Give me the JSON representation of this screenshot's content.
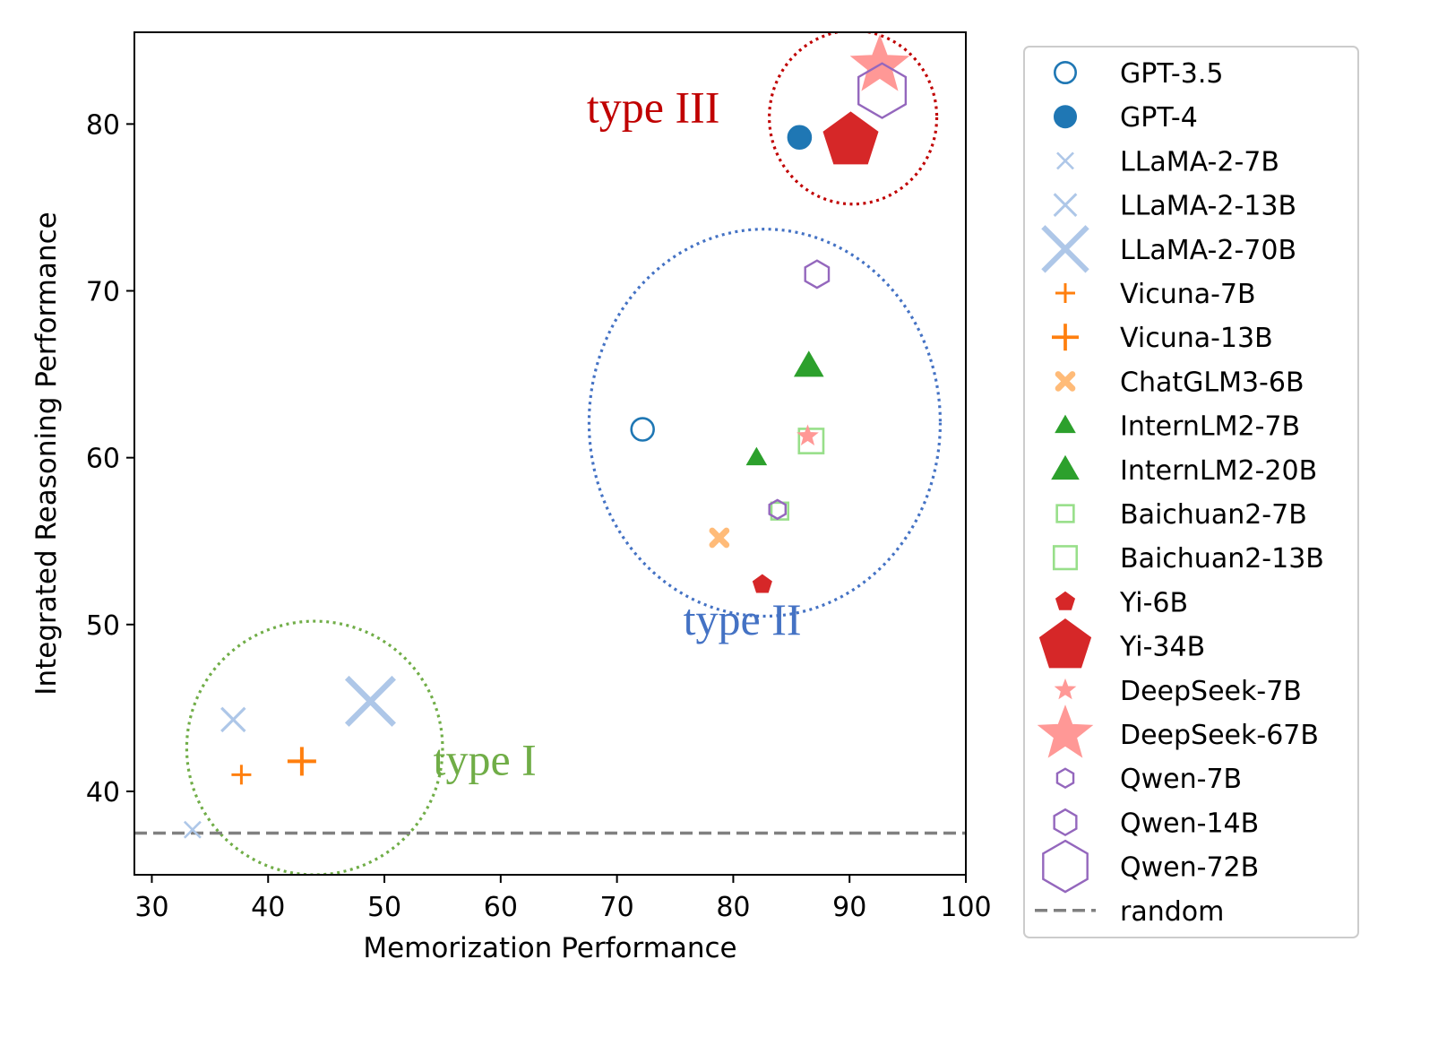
{
  "chart_data": {
    "type": "scatter",
    "xlabel": "Memorization Performance",
    "ylabel": "Integrated Reasoning Performance",
    "xlim": [
      28.5,
      100
    ],
    "ylim": [
      35,
      85.5
    ],
    "xticks": [
      30,
      40,
      50,
      60,
      70,
      80,
      90,
      100
    ],
    "yticks": [
      40,
      50,
      60,
      70,
      80
    ],
    "grid": false,
    "legend_position": "outside-right",
    "series": [
      {
        "name": "GPT-3.5",
        "x": 72.2,
        "y": 61.7,
        "marker": "circle",
        "size": "medium",
        "color": "#1f77b4",
        "filled": false
      },
      {
        "name": "GPT-4",
        "x": 85.7,
        "y": 79.2,
        "marker": "circle",
        "size": "medium",
        "color": "#1f77b4",
        "filled": true
      },
      {
        "name": "LLaMA-2-7B",
        "x": 33.5,
        "y": 37.7,
        "marker": "x",
        "size": "small",
        "color": "#aec7e8",
        "filled": false
      },
      {
        "name": "LLaMA-2-13B",
        "x": 37.0,
        "y": 44.3,
        "marker": "x",
        "size": "medium",
        "color": "#aec7e8",
        "filled": false
      },
      {
        "name": "LLaMA-2-70B",
        "x": 48.8,
        "y": 45.4,
        "marker": "x",
        "size": "large",
        "color": "#aec7e8",
        "filled": false
      },
      {
        "name": "Vicuna-7B",
        "x": 37.7,
        "y": 41.0,
        "marker": "plus",
        "size": "small",
        "color": "#ff7f0e",
        "filled": false
      },
      {
        "name": "Vicuna-13B",
        "x": 42.9,
        "y": 41.8,
        "marker": "plus",
        "size": "medium",
        "color": "#ff7f0e",
        "filled": false
      },
      {
        "name": "ChatGLM3-6B",
        "x": 78.8,
        "y": 55.2,
        "marker": "filled-x",
        "size": "small",
        "color": "#ffbb78",
        "filled": true
      },
      {
        "name": "InternLM2-7B",
        "x": 82.0,
        "y": 60.0,
        "marker": "triangle",
        "size": "small",
        "color": "#2ca02c",
        "filled": true
      },
      {
        "name": "InternLM2-20B",
        "x": 86.5,
        "y": 65.5,
        "marker": "triangle",
        "size": "medium",
        "color": "#2ca02c",
        "filled": true
      },
      {
        "name": "Baichuan2-7B",
        "x": 84.0,
        "y": 56.8,
        "marker": "square",
        "size": "small",
        "color": "#98df8a",
        "filled": false
      },
      {
        "name": "Baichuan2-13B",
        "x": 86.7,
        "y": 61.0,
        "marker": "square",
        "size": "medium",
        "color": "#98df8a",
        "filled": false
      },
      {
        "name": "Yi-6B",
        "x": 82.5,
        "y": 52.4,
        "marker": "pentagon",
        "size": "small",
        "color": "#d62728",
        "filled": true
      },
      {
        "name": "Yi-34B",
        "x": 90.1,
        "y": 79.0,
        "marker": "pentagon",
        "size": "large",
        "color": "#d62728",
        "filled": true
      },
      {
        "name": "DeepSeek-7B",
        "x": 86.4,
        "y": 61.3,
        "marker": "star",
        "size": "small",
        "color": "#ff9896",
        "filled": true
      },
      {
        "name": "DeepSeek-67B",
        "x": 92.6,
        "y": 83.5,
        "marker": "star",
        "size": "large",
        "color": "#ff9896",
        "filled": true
      },
      {
        "name": "Qwen-7B",
        "x": 83.8,
        "y": 56.9,
        "marker": "hexagon",
        "size": "small",
        "color": "#9467bd",
        "filled": false
      },
      {
        "name": "Qwen-14B",
        "x": 87.2,
        "y": 71.0,
        "marker": "hexagon",
        "size": "medium",
        "color": "#9467bd",
        "filled": false
      },
      {
        "name": "Qwen-72B",
        "x": 92.8,
        "y": 82.0,
        "marker": "hexagon",
        "size": "large",
        "color": "#9467bd",
        "filled": false
      }
    ],
    "reference_line": {
      "name": "random",
      "y": 37.5,
      "style": "dashed",
      "color": "#808080"
    },
    "annotations": [
      {
        "text": "type I",
        "color": "#70ad47",
        "center": [
          44.0,
          42.6
        ],
        "radius": [
          11.0,
          7.6
        ],
        "label_at": [
          54.2,
          41.0
        ]
      },
      {
        "text": "type II",
        "color": "#4472c4",
        "center": [
          82.7,
          62.1
        ],
        "radius": [
          15.1,
          11.6
        ],
        "label_at": [
          75.7,
          49.4
        ]
      },
      {
        "text": "type III",
        "color": "#c00000",
        "center": [
          90.3,
          80.4
        ],
        "radius": [
          7.2,
          5.2
        ],
        "label_at": [
          67.4,
          80.1
        ]
      }
    ]
  }
}
